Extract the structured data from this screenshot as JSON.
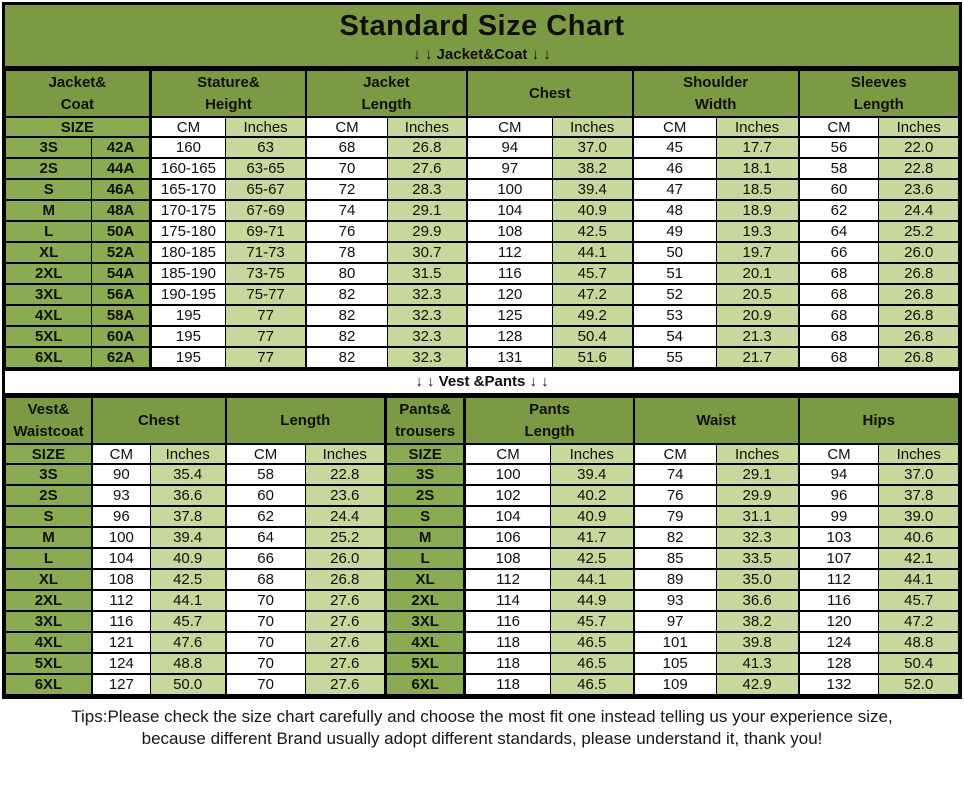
{
  "title": "Standard Size Chart",
  "sections": {
    "jacket_banner": "↓ ↓  Jacket&Coat ↓ ↓",
    "vest_banner": "↓ ↓  Vest &Pants ↓ ↓"
  },
  "jacket_table": {
    "group_headers": [
      "Jacket&\nCoat",
      "Stature&\nHeight",
      "Jacket\nLength",
      "Chest",
      "Shoulder\nWidth",
      "Sleeves\nLength"
    ],
    "unit_headers": [
      "SIZE",
      "CM",
      "Inches",
      "CM",
      "Inches",
      "CM",
      "Inches",
      "CM",
      "Inches",
      "CM",
      "Inches"
    ],
    "rows": [
      [
        "3S",
        "42A",
        "160",
        "63",
        "68",
        "26.8",
        "94",
        "37.0",
        "45",
        "17.7",
        "56",
        "22.0"
      ],
      [
        "2S",
        "44A",
        "160-165",
        "63-65",
        "70",
        "27.6",
        "97",
        "38.2",
        "46",
        "18.1",
        "58",
        "22.8"
      ],
      [
        "S",
        "46A",
        "165-170",
        "65-67",
        "72",
        "28.3",
        "100",
        "39.4",
        "47",
        "18.5",
        "60",
        "23.6"
      ],
      [
        "M",
        "48A",
        "170-175",
        "67-69",
        "74",
        "29.1",
        "104",
        "40.9",
        "48",
        "18.9",
        "62",
        "24.4"
      ],
      [
        "L",
        "50A",
        "175-180",
        "69-71",
        "76",
        "29.9",
        "108",
        "42.5",
        "49",
        "19.3",
        "64",
        "25.2"
      ],
      [
        "XL",
        "52A",
        "180-185",
        "71-73",
        "78",
        "30.7",
        "112",
        "44.1",
        "50",
        "19.7",
        "66",
        "26.0"
      ],
      [
        "2XL",
        "54A",
        "185-190",
        "73-75",
        "80",
        "31.5",
        "116",
        "45.7",
        "51",
        "20.1",
        "68",
        "26.8"
      ],
      [
        "3XL",
        "56A",
        "190-195",
        "75-77",
        "82",
        "32.3",
        "120",
        "47.2",
        "52",
        "20.5",
        "68",
        "26.8"
      ],
      [
        "4XL",
        "58A",
        "195",
        "77",
        "82",
        "32.3",
        "125",
        "49.2",
        "53",
        "20.9",
        "68",
        "26.8"
      ],
      [
        "5XL",
        "60A",
        "195",
        "77",
        "82",
        "32.3",
        "128",
        "50.4",
        "54",
        "21.3",
        "68",
        "26.8"
      ],
      [
        "6XL",
        "62A",
        "195",
        "77",
        "82",
        "32.3",
        "131",
        "51.6",
        "55",
        "21.7",
        "68",
        "26.8"
      ]
    ]
  },
  "vest_table": {
    "group_headers": [
      "Vest&\nWaistcoat",
      "Chest",
      "Length",
      "Pants&\ntrousers",
      "Pants\nLength",
      "Waist",
      "Hips"
    ],
    "unit_headers": [
      "SIZE",
      "CM",
      "Inches",
      "CM",
      "Inches",
      "SIZE",
      "CM",
      "Inches",
      "CM",
      "Inches",
      "CM",
      "Inches"
    ],
    "rows": [
      [
        "3S",
        "90",
        "35.4",
        "58",
        "22.8",
        "3S",
        "100",
        "39.4",
        "74",
        "29.1",
        "94",
        "37.0"
      ],
      [
        "2S",
        "93",
        "36.6",
        "60",
        "23.6",
        "2S",
        "102",
        "40.2",
        "76",
        "29.9",
        "96",
        "37.8"
      ],
      [
        "S",
        "96",
        "37.8",
        "62",
        "24.4",
        "S",
        "104",
        "40.9",
        "79",
        "31.1",
        "99",
        "39.0"
      ],
      [
        "M",
        "100",
        "39.4",
        "64",
        "25.2",
        "M",
        "106",
        "41.7",
        "82",
        "32.3",
        "103",
        "40.6"
      ],
      [
        "L",
        "104",
        "40.9",
        "66",
        "26.0",
        "L",
        "108",
        "42.5",
        "85",
        "33.5",
        "107",
        "42.1"
      ],
      [
        "XL",
        "108",
        "42.5",
        "68",
        "26.8",
        "XL",
        "112",
        "44.1",
        "89",
        "35.0",
        "112",
        "44.1"
      ],
      [
        "2XL",
        "112",
        "44.1",
        "70",
        "27.6",
        "2XL",
        "114",
        "44.9",
        "93",
        "36.6",
        "116",
        "45.7"
      ],
      [
        "3XL",
        "116",
        "45.7",
        "70",
        "27.6",
        "3XL",
        "116",
        "45.7",
        "97",
        "38.2",
        "120",
        "47.2"
      ],
      [
        "4XL",
        "121",
        "47.6",
        "70",
        "27.6",
        "4XL",
        "118",
        "46.5",
        "101",
        "39.8",
        "124",
        "48.8"
      ],
      [
        "5XL",
        "124",
        "48.8",
        "70",
        "27.6",
        "5XL",
        "118",
        "46.5",
        "105",
        "41.3",
        "128",
        "50.4"
      ],
      [
        "6XL",
        "127",
        "50.0",
        "70",
        "27.6",
        "6XL",
        "118",
        "46.5",
        "109",
        "42.9",
        "132",
        "52.0"
      ]
    ]
  },
  "tips": {
    "line1": "Tips:Please check the size chart carefully and choose the most fit one instead telling us your experience size,",
    "line2": "because different Brand usually adopt different standards, please understand it, thank you!"
  },
  "colors": {
    "header_green": "#7c9a43",
    "size_cell_green": "#8aab52",
    "light_green": "#c6d89b",
    "border_black": "#000000"
  }
}
